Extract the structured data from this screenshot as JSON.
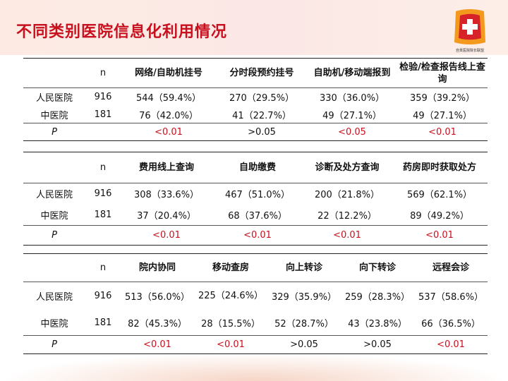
{
  "header": {
    "title": "不同类别医院信息化利用情况",
    "logo_caption": "自贡医院院长联盟"
  },
  "tables": [
    {
      "columns": [
        "",
        "n",
        "网络/自助机挂号",
        "分时段预约挂号",
        "自助机/移动端报到",
        "检验/检查报告线上查询"
      ],
      "rows": [
        {
          "label": "人民医院",
          "n": "916",
          "c1": "544（59.4%）",
          "c2": "270（29.5%）",
          "c3": "330（36.0%）",
          "c4": "359（39.2%）"
        },
        {
          "label": "中医院",
          "n": "181",
          "c1": "76（42.0%）",
          "c2": "41（22.7%）",
          "c3": "49（27.1%）",
          "c4": "49（27.1%）"
        }
      ],
      "p_label": "P",
      "p_values": [
        "<0.01",
        ">0.05",
        "<0.05",
        "<0.01"
      ]
    },
    {
      "columns": [
        "",
        "n",
        "费用线上查询",
        "自助缴费",
        "诊断及处方查询",
        "药房即时获取处方"
      ],
      "rows": [
        {
          "label": "人民医院",
          "n": "916",
          "c1": "308（33.6%）",
          "c2": "467（51.0%）",
          "c3": "200（21.8%）",
          "c4": "569（62.1%）"
        },
        {
          "label": "中医院",
          "n": "181",
          "c1": "37（20.4%）",
          "c2": "68（37.6%）",
          "c3": "22（12.2%）",
          "c4": "89（49.2%）"
        }
      ],
      "p_label": "P",
      "p_values": [
        "<0.01",
        "<0.01",
        "<0.01",
        "<0.01"
      ]
    },
    {
      "columns": [
        "",
        "n",
        "院内协同",
        "移动查房",
        "向上转诊",
        "向下转诊",
        "远程会诊"
      ],
      "rows": [
        {
          "label": "人民医院",
          "n": "916",
          "c1": "513（56.0%）",
          "c2": "225（24.6%）",
          "c3": "329（35.9%）",
          "c4": "259（28.3%）",
          "c5": "537（58.6%）"
        },
        {
          "label": "中医院",
          "n": "181",
          "c1": "82（45.3%）",
          "c2": "28（15.5%）",
          "c3": "52（28.7%）",
          "c4": "43（23.8%）",
          "c5": "66（36.5%）"
        }
      ],
      "p_label": "P",
      "p_values": [
        "<0.01",
        "<0.01",
        ">0.05",
        ">0.05",
        "<0.01"
      ]
    }
  ],
  "colors": {
    "title": "#c8101e",
    "significant": "#c8101e",
    "logo_red": "#d8222a",
    "logo_orange": "#f39a1e"
  }
}
